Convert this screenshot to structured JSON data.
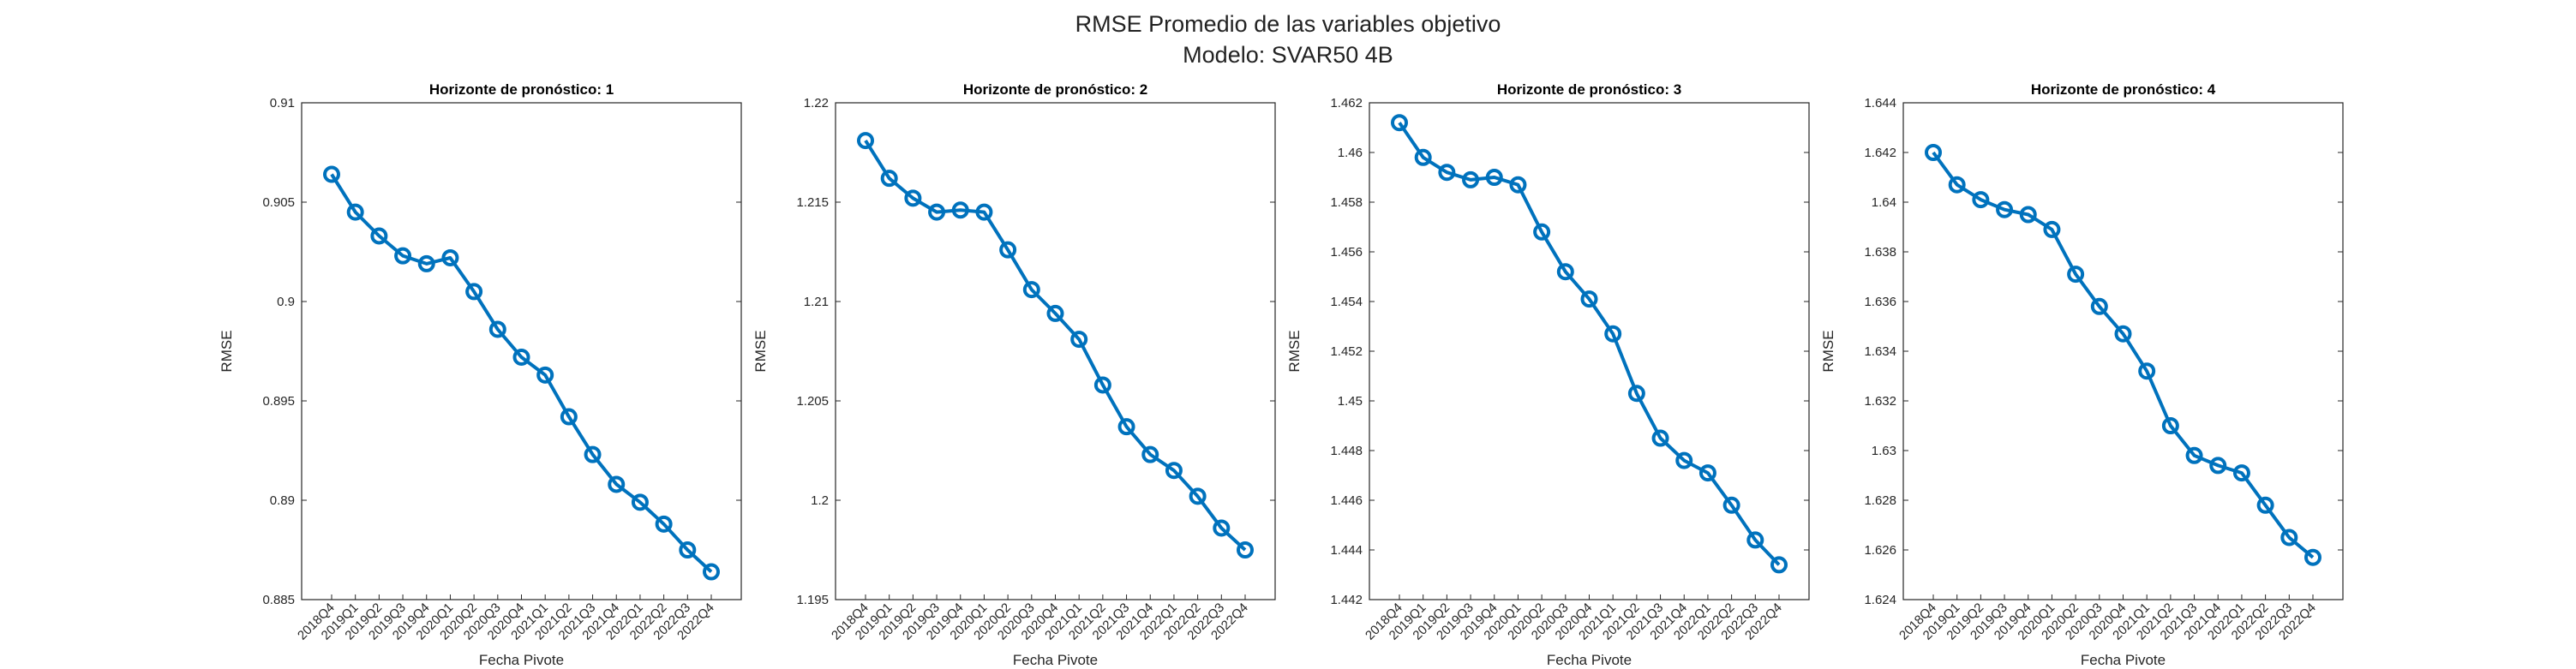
{
  "figure": {
    "title_line1": "RMSE Promedio de las variables objetivo",
    "title_line2": "Modelo: SVAR50 4B"
  },
  "colors": {
    "series": "#0072BD",
    "axes": "#262626"
  },
  "chart_data": [
    {
      "type": "line",
      "title": "Horizonte de pronóstico: 1",
      "xlabel": "Fecha Pivote",
      "ylabel": "RMSE",
      "ylim": [
        0.885,
        0.91
      ],
      "yticks": [
        "0.885",
        "0.89",
        "0.895",
        "0.9",
        "0.905",
        "0.91"
      ],
      "x": [
        "2018Q4",
        "2019Q1",
        "2019Q2",
        "2019Q3",
        "2019Q4",
        "2020Q1",
        "2020Q2",
        "2020Q3",
        "2020Q4",
        "2021Q1",
        "2021Q2",
        "2021Q3",
        "2021Q4",
        "2022Q1",
        "2022Q2",
        "2022Q3",
        "2022Q4"
      ],
      "values": [
        0.9064,
        0.9045,
        0.9033,
        0.9023,
        0.9019,
        0.9022,
        0.9005,
        0.8986,
        0.8972,
        0.8963,
        0.8942,
        0.8923,
        0.8908,
        0.8899,
        0.8888,
        0.8875,
        0.8864
      ],
      "marker": "circle",
      "grid": false
    },
    {
      "type": "line",
      "title": "Horizonte de pronóstico: 2",
      "xlabel": "Fecha Pivote",
      "ylabel": "RMSE",
      "ylim": [
        1.195,
        1.22
      ],
      "yticks": [
        "1.195",
        "1.2",
        "1.205",
        "1.21",
        "1.215",
        "1.22"
      ],
      "x": [
        "2018Q4",
        "2019Q1",
        "2019Q2",
        "2019Q3",
        "2019Q4",
        "2020Q1",
        "2020Q2",
        "2020Q3",
        "2020Q4",
        "2021Q1",
        "2021Q2",
        "2021Q3",
        "2021Q4",
        "2022Q1",
        "2022Q2",
        "2022Q3",
        "2022Q4"
      ],
      "values": [
        1.2181,
        1.2162,
        1.2152,
        1.2145,
        1.2146,
        1.2145,
        1.2126,
        1.2106,
        1.2094,
        1.2081,
        1.2058,
        1.2037,
        1.2023,
        1.2015,
        1.2002,
        1.1986,
        1.1975
      ],
      "marker": "circle",
      "grid": false
    },
    {
      "type": "line",
      "title": "Horizonte de pronóstico: 3",
      "xlabel": "Fecha Pivote",
      "ylabel": "RMSE",
      "ylim": [
        1.442,
        1.462
      ],
      "yticks": [
        "1.442",
        "1.444",
        "1.446",
        "1.448",
        "1.45",
        "1.452",
        "1.454",
        "1.456",
        "1.458",
        "1.46",
        "1.462"
      ],
      "x": [
        "2018Q4",
        "2019Q1",
        "2019Q2",
        "2019Q3",
        "2019Q4",
        "2020Q1",
        "2020Q2",
        "2020Q3",
        "2020Q4",
        "2021Q1",
        "2021Q2",
        "2021Q3",
        "2021Q4",
        "2022Q1",
        "2022Q2",
        "2022Q3",
        "2022Q4"
      ],
      "values": [
        1.4612,
        1.4598,
        1.4592,
        1.4589,
        1.459,
        1.4587,
        1.4568,
        1.4552,
        1.4541,
        1.4527,
        1.4503,
        1.4485,
        1.4476,
        1.4471,
        1.4458,
        1.4444,
        1.4434
      ],
      "marker": "circle",
      "grid": false
    },
    {
      "type": "line",
      "title": "Horizonte de pronóstico: 4",
      "xlabel": "Fecha Pivote",
      "ylabel": "RMSE",
      "ylim": [
        1.624,
        1.644
      ],
      "yticks": [
        "1.624",
        "1.626",
        "1.628",
        "1.63",
        "1.632",
        "1.634",
        "1.636",
        "1.638",
        "1.64",
        "1.642",
        "1.644"
      ],
      "x": [
        "2018Q4",
        "2019Q1",
        "2019Q2",
        "2019Q3",
        "2019Q4",
        "2020Q1",
        "2020Q2",
        "2020Q3",
        "2020Q4",
        "2021Q1",
        "2021Q2",
        "2021Q3",
        "2021Q4",
        "2022Q1",
        "2022Q2",
        "2022Q3",
        "2022Q4"
      ],
      "values": [
        1.642,
        1.6407,
        1.6401,
        1.6397,
        1.6395,
        1.6389,
        1.6371,
        1.6358,
        1.6347,
        1.6332,
        1.631,
        1.6298,
        1.6294,
        1.6291,
        1.6278,
        1.6265,
        1.6257
      ],
      "marker": "circle",
      "grid": false
    }
  ]
}
